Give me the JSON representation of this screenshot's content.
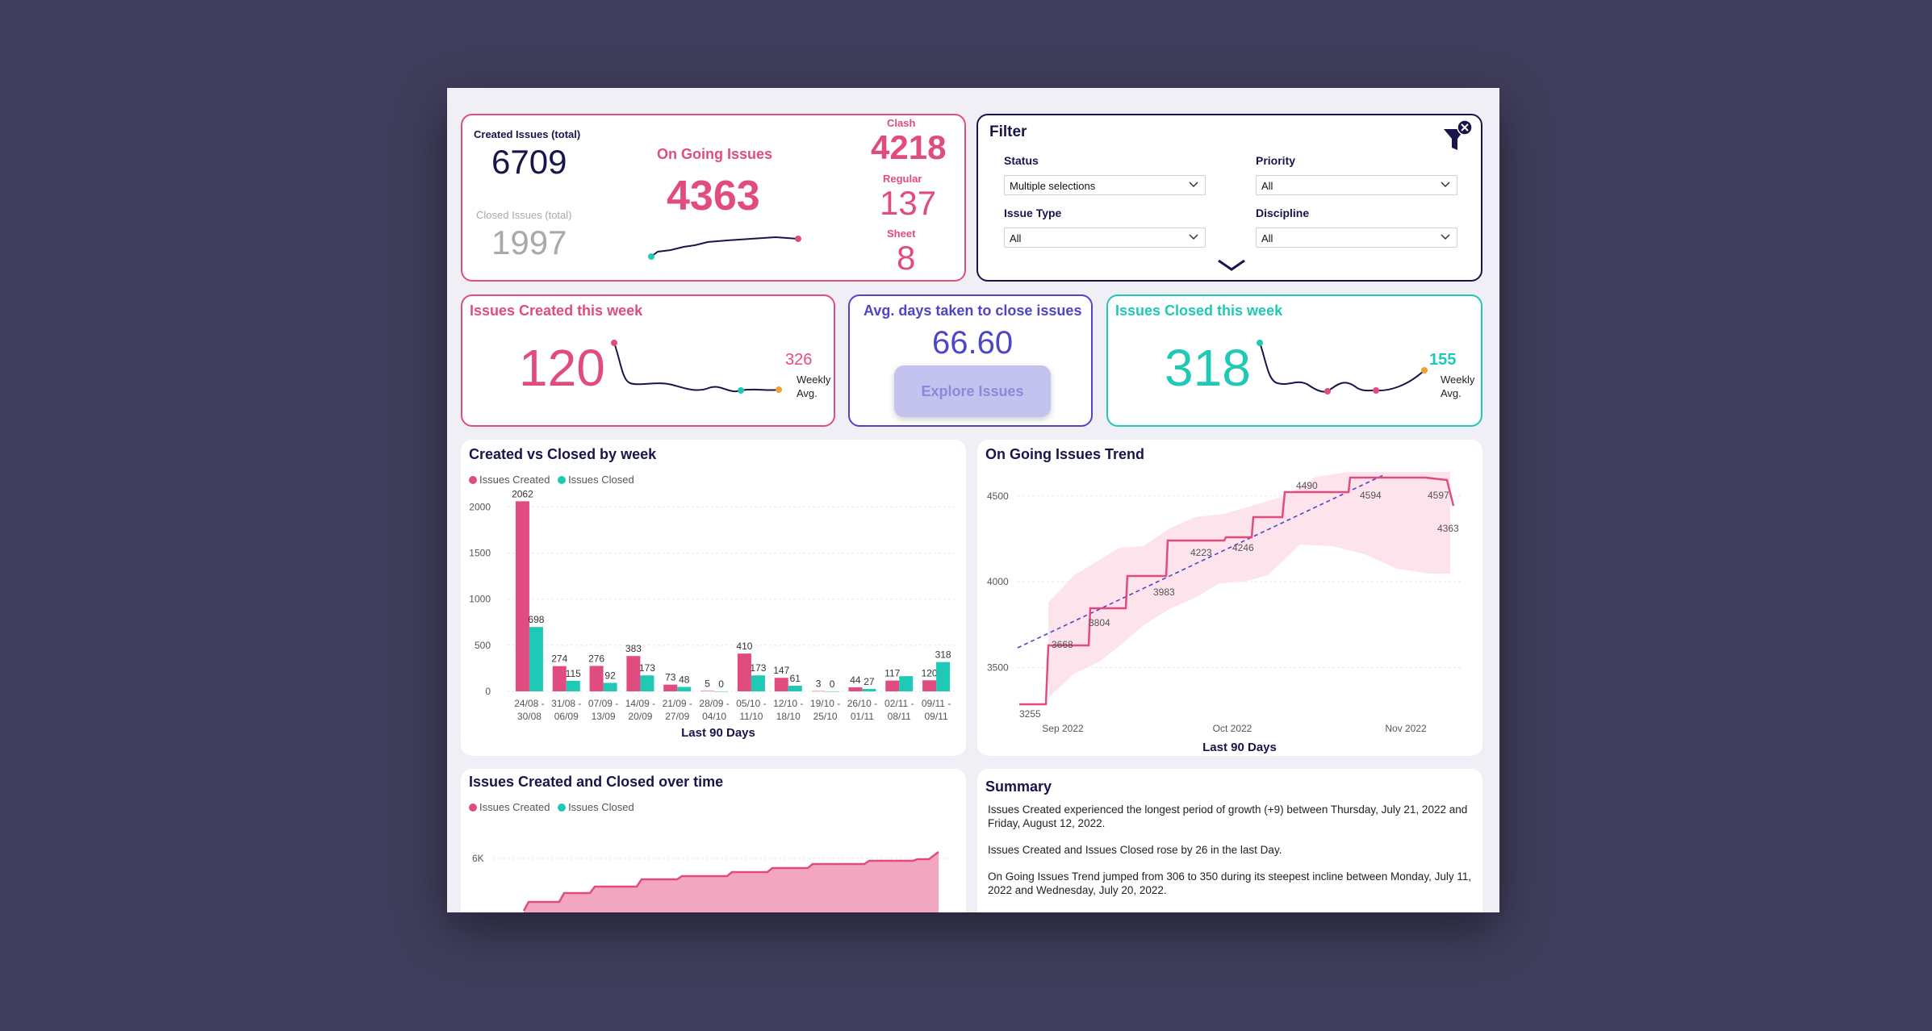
{
  "kpi": {
    "created_label": "Created Issues (total)",
    "created_value": "6709",
    "closed_label": "Closed Issues (total)",
    "closed_value": "1997",
    "ongoing_label": "On Going Issues",
    "ongoing_value": "4363",
    "clash_label": "Clash",
    "clash_value": "4218",
    "regular_label": "Regular",
    "regular_value": "137",
    "sheet_label": "Sheet",
    "sheet_value": "8"
  },
  "filter": {
    "title": "Filter",
    "status_label": "Status",
    "status_value": "Multiple selections",
    "priority_label": "Priority",
    "priority_value": "All",
    "issue_type_label": "Issue Type",
    "issue_type_value": "All",
    "discipline_label": "Discipline",
    "discipline_value": "All"
  },
  "week_created": {
    "title": "Issues Created this week",
    "value": "120",
    "avg_value": "326",
    "avg_label_1": "Weekly",
    "avg_label_2": "Avg."
  },
  "avg_days": {
    "title": "Avg. days taken to close issues",
    "value": "66.60",
    "button_label": "Explore Issues"
  },
  "week_closed": {
    "title": "Issues Closed this week",
    "value": "318",
    "avg_value": "155",
    "avg_label_1": "Weekly",
    "avg_label_2": "Avg."
  },
  "colors": {
    "pink": "#e04c7f",
    "teal": "#1fc9b5",
    "navy": "#17164a",
    "purple": "#4f45c7"
  },
  "chart_data": [
    {
      "type": "bar",
      "title": "Created vs Closed by week",
      "xlabel": "Last 90 Days",
      "ylabel": "",
      "ylim": [
        0,
        2100
      ],
      "yticks": [
        0,
        500,
        1000,
        1500,
        2000
      ],
      "legend": [
        "Issues Created",
        "Issues Closed"
      ],
      "categories": [
        [
          "24/08 -",
          "30/08"
        ],
        [
          "31/08 -",
          "06/09"
        ],
        [
          "07/09 -",
          "13/09"
        ],
        [
          "14/09 -",
          "20/09"
        ],
        [
          "21/09 -",
          "27/09"
        ],
        [
          "28/09 -",
          "04/10"
        ],
        [
          "05/10 -",
          "11/10"
        ],
        [
          "12/10 -",
          "18/10"
        ],
        [
          "19/10 -",
          "25/10"
        ],
        [
          "26/10 -",
          "01/11"
        ],
        [
          "02/11 -",
          "08/11"
        ],
        [
          "09/11 -",
          "09/11"
        ]
      ],
      "series": [
        {
          "name": "Issues Created",
          "values": [
            2062,
            274,
            276,
            383,
            73,
            5,
            410,
            147,
            3,
            44,
            117,
            120
          ]
        },
        {
          "name": "Issues Closed",
          "values": [
            698,
            115,
            92,
            173,
            48,
            0,
            173,
            61,
            0,
            27,
            165,
            318
          ]
        }
      ],
      "shown_labels": {
        "created": [
          "2062",
          "274",
          "276",
          "383",
          "73",
          "5",
          "410",
          "147",
          "3",
          "44",
          "117",
          "120"
        ],
        "closed": [
          "698",
          "115",
          "92",
          "173",
          "48",
          "0",
          "173",
          "61",
          "0",
          "27",
          "",
          "318"
        ]
      }
    },
    {
      "type": "line",
      "title": "On Going Issues Trend",
      "xlabel": "Last 90 Days",
      "ylim": [
        3230,
        4640
      ],
      "yticks": [
        3500,
        4000,
        4500
      ],
      "xticks": [
        "Sep 2022",
        "Oct 2022",
        "Nov 2022"
      ],
      "point_labels": [
        "3255",
        "3668",
        "3804",
        "3983",
        "4223",
        "4246",
        "4490",
        "4594",
        "4597",
        "4363"
      ]
    },
    {
      "type": "area",
      "title": "Issues Created and Closed over time",
      "legend": [
        "Issues Created",
        "Issues Closed"
      ],
      "ytick": "6K"
    }
  ],
  "summary": {
    "title": "Summary",
    "p1": "Issues Created experienced the longest period of growth (+9) between Thursday, July 21, 2022 and Friday, August 12, 2022.",
    "p2": "Issues Created and Issues Closed rose by 26 in the last Day.",
    "p3": "On Going Issues Trend jumped from 306 to 350 during its steepest incline between Monday, July 11, 2022 and Wednesday, July 20, 2022."
  }
}
